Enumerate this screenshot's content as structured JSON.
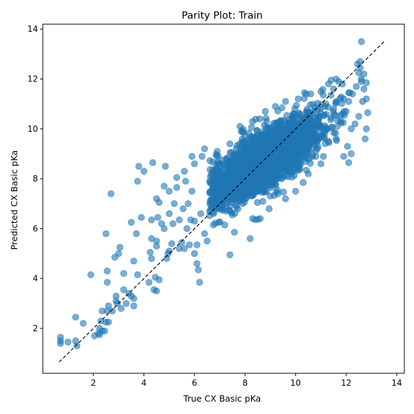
{
  "chart_data": {
    "type": "scatter",
    "title": "Parity Plot: Train",
    "xlabel": "True CX Basic pKa",
    "ylabel": "Predicted CX Basic pKa",
    "xlim": [
      0.0,
      14.3
    ],
    "ylim": [
      0.2,
      14.2
    ],
    "xticks": [
      2,
      4,
      6,
      8,
      10,
      12,
      14
    ],
    "yticks": [
      2,
      4,
      6,
      8,
      10,
      12,
      14
    ],
    "grid": false,
    "marker_color": "#1f77b4",
    "marker_alpha": 0.6,
    "reference_line": {
      "style": "dashed",
      "color": "#000000",
      "x": [
        0.65,
        13.5
      ],
      "y": [
        0.65,
        13.5
      ]
    },
    "outlier_points": [
      [
        0.7,
        1.65
      ],
      [
        0.7,
        1.5
      ],
      [
        0.7,
        1.4
      ],
      [
        1.0,
        1.45
      ],
      [
        1.3,
        1.5
      ],
      [
        1.35,
        1.3
      ],
      [
        1.3,
        2.45
      ],
      [
        1.6,
        2.2
      ],
      [
        1.9,
        4.15
      ],
      [
        2.05,
        1.7
      ],
      [
        2.2,
        1.8
      ],
      [
        2.25,
        2.0
      ],
      [
        2.25,
        1.75
      ],
      [
        2.3,
        2.3
      ],
      [
        2.35,
        1.9
      ],
      [
        2.35,
        2.7
      ],
      [
        2.45,
        1.9
      ],
      [
        2.5,
        2.25
      ],
      [
        2.55,
        2.7
      ],
      [
        2.6,
        2.25
      ],
      [
        2.6,
        2.9
      ],
      [
        2.55,
        3.85
      ],
      [
        2.55,
        4.3
      ],
      [
        2.5,
        5.8
      ],
      [
        2.7,
        7.4
      ],
      [
        2.75,
        2.7
      ],
      [
        2.85,
        4.85
      ],
      [
        2.9,
        3.1
      ],
      [
        2.9,
        3.3
      ],
      [
        2.95,
        3.0
      ],
      [
        3.0,
        5.0
      ],
      [
        3.05,
        5.25
      ],
      [
        3.1,
        2.8
      ],
      [
        3.2,
        3.55
      ],
      [
        3.2,
        4.2
      ],
      [
        3.3,
        3.0
      ],
      [
        3.4,
        3.4
      ],
      [
        3.5,
        3.3
      ],
      [
        3.5,
        6.25
      ],
      [
        3.6,
        2.9
      ],
      [
        3.6,
        3.2
      ],
      [
        3.6,
        4.7
      ],
      [
        3.7,
        5.8
      ],
      [
        3.75,
        4.15
      ],
      [
        3.8,
        8.5
      ],
      [
        3.75,
        7.9
      ],
      [
        3.9,
        6.45
      ],
      [
        4.0,
        8.3
      ],
      [
        4.2,
        3.85
      ],
      [
        4.25,
        5.05
      ],
      [
        4.3,
        4.8
      ],
      [
        4.3,
        5.6
      ],
      [
        4.3,
        6.35
      ],
      [
        4.35,
        8.65
      ],
      [
        4.4,
        3.55
      ],
      [
        4.5,
        3.5
      ],
      [
        4.45,
        4.05
      ],
      [
        4.5,
        5.3
      ],
      [
        4.5,
        5.5
      ],
      [
        4.5,
        7.2
      ],
      [
        4.55,
        6.45
      ],
      [
        4.6,
        3.95
      ],
      [
        4.6,
        7.05
      ],
      [
        4.7,
        6.2
      ],
      [
        4.8,
        6.0
      ],
      [
        4.8,
        7.7
      ],
      [
        4.85,
        8.5
      ],
      [
        4.9,
        4.8
      ],
      [
        4.95,
        5.0
      ],
      [
        5.0,
        5.1
      ],
      [
        5.0,
        6.6
      ],
      [
        5.0,
        7.5
      ],
      [
        5.1,
        5.4
      ],
      [
        5.15,
        6.2
      ],
      [
        5.2,
        7.0
      ],
      [
        5.3,
        7.65
      ],
      [
        5.4,
        5.2
      ],
      [
        5.4,
        6.35
      ],
      [
        5.5,
        5.45
      ],
      [
        5.55,
        6.8
      ],
      [
        5.6,
        5.2
      ],
      [
        5.65,
        7.9
      ],
      [
        5.7,
        6.0
      ],
      [
        5.75,
        7.0
      ],
      [
        5.8,
        5.35
      ],
      [
        5.85,
        6.35
      ],
      [
        5.9,
        8.9
      ],
      [
        5.9,
        7.5
      ],
      [
        6.0,
        5.0
      ],
      [
        6.0,
        6.3
      ],
      [
        6.1,
        4.6
      ],
      [
        6.15,
        4.35
      ],
      [
        6.2,
        3.85
      ],
      [
        6.1,
        5.35
      ],
      [
        6.25,
        6.6
      ],
      [
        6.3,
        8.9
      ],
      [
        6.4,
        5.8
      ],
      [
        6.4,
        9.2
      ],
      [
        6.5,
        5.5
      ],
      [
        6.6,
        6.7
      ],
      [
        6.75,
        6.15
      ],
      [
        6.9,
        9.1
      ],
      [
        7.2,
        6.15
      ],
      [
        7.4,
        4.95
      ],
      [
        7.5,
        6.55
      ],
      [
        7.8,
        10.1
      ],
      [
        8.2,
        5.6
      ],
      [
        8.3,
        6.4
      ],
      [
        8.6,
        6.4
      ],
      [
        8.95,
        6.8
      ],
      [
        10.35,
        11.45
      ],
      [
        10.8,
        8.9
      ],
      [
        11.0,
        8.6
      ],
      [
        11.2,
        11.0
      ],
      [
        11.4,
        10.45
      ],
      [
        11.5,
        11.6
      ],
      [
        11.5,
        10.8
      ],
      [
        11.65,
        10.1
      ],
      [
        11.7,
        11.9
      ],
      [
        11.8,
        10.55
      ],
      [
        11.85,
        11.8
      ],
      [
        11.9,
        8.9
      ],
      [
        11.9,
        11.2
      ],
      [
        12.0,
        10.7
      ],
      [
        12.05,
        9.3
      ],
      [
        12.1,
        8.65
      ],
      [
        12.1,
        11.1
      ],
      [
        12.2,
        10.0
      ],
      [
        12.25,
        11.4
      ],
      [
        12.35,
        10.2
      ],
      [
        12.4,
        11.7
      ],
      [
        12.45,
        12.6
      ],
      [
        12.5,
        10.5
      ],
      [
        12.5,
        12.25
      ],
      [
        12.55,
        12.45
      ],
      [
        12.55,
        12.7
      ],
      [
        12.6,
        11.9
      ],
      [
        12.6,
        12.0
      ],
      [
        12.6,
        13.5
      ],
      [
        12.65,
        11.1
      ],
      [
        12.7,
        11.6
      ],
      [
        12.7,
        12.2
      ],
      [
        12.75,
        9.6
      ],
      [
        12.8,
        11.2
      ],
      [
        12.8,
        11.85
      ],
      [
        12.85,
        10.65
      ],
      [
        12.8,
        10.0
      ],
      [
        12.2,
        9.0
      ],
      [
        11.6,
        9.6
      ],
      [
        11.3,
        9.5
      ],
      [
        11.1,
        8.9
      ],
      [
        10.5,
        8.2
      ],
      [
        10.3,
        7.85
      ],
      [
        10.0,
        7.5
      ],
      [
        9.6,
        7.2
      ],
      [
        9.3,
        7.4
      ],
      [
        8.7,
        7.1
      ],
      [
        7.9,
        7.0
      ],
      [
        7.1,
        7.1
      ],
      [
        6.8,
        7.5
      ],
      [
        6.6,
        7.9
      ],
      [
        7.4,
        9.4
      ],
      [
        7.9,
        9.9
      ],
      [
        8.3,
        10.3
      ],
      [
        8.8,
        10.7
      ],
      [
        9.2,
        10.9
      ],
      [
        9.6,
        11.1
      ],
      [
        10.1,
        11.2
      ],
      [
        10.6,
        11.4
      ],
      [
        11.0,
        11.5
      ],
      [
        11.3,
        11.8
      ],
      [
        11.6,
        12.0
      ],
      [
        5.3,
        8.05
      ],
      [
        5.6,
        8.3
      ],
      [
        6.0,
        8.6
      ]
    ],
    "dense_cluster": {
      "note": "bulk of points along the diagonal",
      "x_range": [
        6.0,
        12.5
      ],
      "slope": 0.62,
      "intercept": 3.35,
      "count": 2600
    }
  }
}
